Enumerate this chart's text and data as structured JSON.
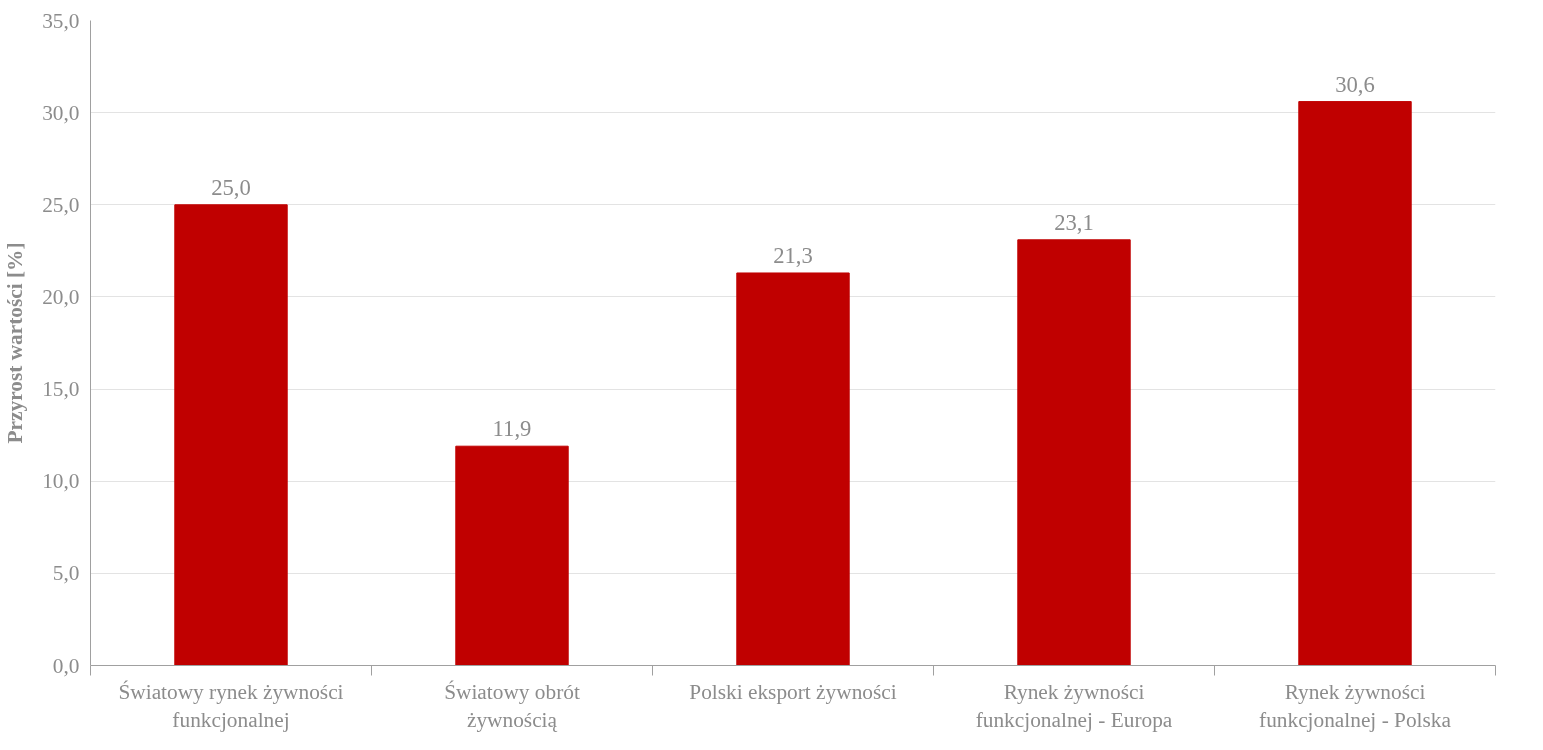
{
  "chart_data": {
    "type": "bar",
    "ylabel": "Przyrost wartości [%]",
    "categories": [
      "Światowy rynek żywności\nfunkcjonalnej",
      "Światowy obrót\nżywnością",
      "Polski eksport żywności",
      "Rynek żywności\nfunkcjonalnej - Europa",
      "Rynek żywności\nfunkcjonalnej - Polska"
    ],
    "values": [
      25.0,
      11.9,
      21.3,
      23.1,
      30.6
    ],
    "value_labels": [
      "25,0",
      "11,9",
      "21,3",
      "23,1",
      "30,6"
    ],
    "color": "#c00000",
    "ylim": [
      0,
      35
    ],
    "yticks": [
      {
        "value": 0,
        "label": "0,0"
      },
      {
        "value": 5,
        "label": "5,0"
      },
      {
        "value": 10,
        "label": "10,0"
      },
      {
        "value": 15,
        "label": "15,0"
      },
      {
        "value": 20,
        "label": "20,0"
      },
      {
        "value": 25,
        "label": "25,0"
      },
      {
        "value": 30,
        "label": "30,0"
      },
      {
        "value": 35,
        "label": "35,0"
      }
    ],
    "grid": "y"
  }
}
